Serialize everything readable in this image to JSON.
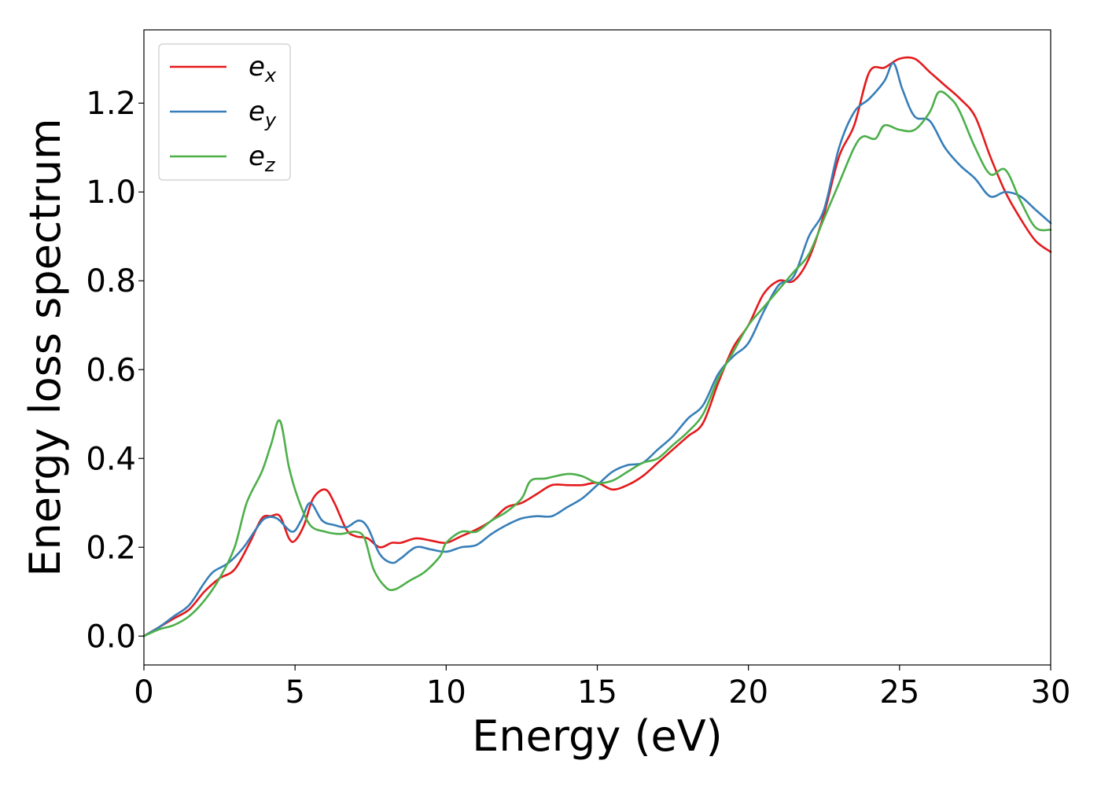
{
  "chart_data": {
    "type": "line",
    "title": "",
    "xlabel": "Energy (eV)",
    "ylabel": "Energy loss spectrum",
    "xlim": [
      0,
      30
    ],
    "ylim": [
      -0.065,
      1.365
    ],
    "xticks": [
      0,
      5,
      10,
      15,
      20,
      25,
      30
    ],
    "xtick_labels": [
      "0",
      "5",
      "10",
      "15",
      "20",
      "25",
      "30"
    ],
    "yticks": [
      0.0,
      0.2,
      0.4,
      0.6,
      0.8,
      1.0,
      1.2
    ],
    "ytick_labels": [
      "0.0",
      "0.2",
      "0.4",
      "0.6",
      "0.8",
      "1.0",
      "1.2"
    ],
    "grid": false,
    "legend_position": "top-left",
    "series": [
      {
        "name": "e_x",
        "legend_base": "e",
        "legend_sub": "x",
        "color": "#e41a1c",
        "points": [
          [
            0,
            0
          ],
          [
            0.5,
            0.02
          ],
          [
            1,
            0.04
          ],
          [
            1.5,
            0.06
          ],
          [
            2,
            0.1
          ],
          [
            2.5,
            0.13
          ],
          [
            3,
            0.15
          ],
          [
            3.5,
            0.21
          ],
          [
            3.9,
            0.265
          ],
          [
            4.2,
            0.27
          ],
          [
            4.5,
            0.27
          ],
          [
            4.8,
            0.22
          ],
          [
            5,
            0.215
          ],
          [
            5.3,
            0.25
          ],
          [
            5.6,
            0.31
          ],
          [
            6,
            0.33
          ],
          [
            6.3,
            0.3
          ],
          [
            6.7,
            0.24
          ],
          [
            7,
            0.225
          ],
          [
            7.4,
            0.22
          ],
          [
            7.8,
            0.2
          ],
          [
            8.2,
            0.21
          ],
          [
            8.5,
            0.21
          ],
          [
            9,
            0.22
          ],
          [
            9.5,
            0.215
          ],
          [
            10,
            0.21
          ],
          [
            10.5,
            0.225
          ],
          [
            11,
            0.24
          ],
          [
            11.5,
            0.26
          ],
          [
            12,
            0.29
          ],
          [
            12.5,
            0.3
          ],
          [
            13,
            0.32
          ],
          [
            13.5,
            0.34
          ],
          [
            14,
            0.34
          ],
          [
            14.5,
            0.34
          ],
          [
            15,
            0.345
          ],
          [
            15.5,
            0.33
          ],
          [
            16,
            0.34
          ],
          [
            16.5,
            0.36
          ],
          [
            17,
            0.39
          ],
          [
            17.5,
            0.42
          ],
          [
            18,
            0.45
          ],
          [
            18.5,
            0.48
          ],
          [
            19,
            0.57
          ],
          [
            19.5,
            0.65
          ],
          [
            20,
            0.7
          ],
          [
            20.5,
            0.77
          ],
          [
            21,
            0.8
          ],
          [
            21.5,
            0.8
          ],
          [
            22,
            0.85
          ],
          [
            22.5,
            0.95
          ],
          [
            23,
            1.08
          ],
          [
            23.5,
            1.15
          ],
          [
            24,
            1.27
          ],
          [
            24.5,
            1.28
          ],
          [
            25,
            1.3
          ],
          [
            25.5,
            1.3
          ],
          [
            26,
            1.27
          ],
          [
            26.5,
            1.24
          ],
          [
            27,
            1.21
          ],
          [
            27.5,
            1.17
          ],
          [
            28,
            1.08
          ],
          [
            28.5,
            1.0
          ],
          [
            29,
            0.94
          ],
          [
            29.5,
            0.89
          ],
          [
            30,
            0.865
          ]
        ]
      },
      {
        "name": "e_y",
        "legend_base": "e",
        "legend_sub": "y",
        "color": "#377eb8",
        "points": [
          [
            0,
            0
          ],
          [
            0.5,
            0.02
          ],
          [
            1,
            0.045
          ],
          [
            1.5,
            0.07
          ],
          [
            2,
            0.12
          ],
          [
            2.3,
            0.145
          ],
          [
            2.8,
            0.165
          ],
          [
            3.3,
            0.2
          ],
          [
            3.7,
            0.24
          ],
          [
            4,
            0.265
          ],
          [
            4.4,
            0.265
          ],
          [
            4.9,
            0.235
          ],
          [
            5.2,
            0.26
          ],
          [
            5.5,
            0.3
          ],
          [
            5.9,
            0.26
          ],
          [
            6.3,
            0.25
          ],
          [
            6.7,
            0.245
          ],
          [
            7.1,
            0.26
          ],
          [
            7.4,
            0.245
          ],
          [
            7.8,
            0.185
          ],
          [
            8.2,
            0.165
          ],
          [
            8.5,
            0.175
          ],
          [
            9,
            0.2
          ],
          [
            9.5,
            0.195
          ],
          [
            10,
            0.19
          ],
          [
            10.5,
            0.2
          ],
          [
            11,
            0.205
          ],
          [
            11.5,
            0.23
          ],
          [
            12,
            0.25
          ],
          [
            12.5,
            0.265
          ],
          [
            13,
            0.27
          ],
          [
            13.5,
            0.27
          ],
          [
            14,
            0.29
          ],
          [
            14.5,
            0.31
          ],
          [
            15,
            0.34
          ],
          [
            15.5,
            0.37
          ],
          [
            16,
            0.385
          ],
          [
            16.5,
            0.39
          ],
          [
            17,
            0.42
          ],
          [
            17.5,
            0.45
          ],
          [
            18,
            0.49
          ],
          [
            18.5,
            0.52
          ],
          [
            19,
            0.59
          ],
          [
            19.5,
            0.63
          ],
          [
            20,
            0.66
          ],
          [
            20.5,
            0.73
          ],
          [
            21,
            0.79
          ],
          [
            21.5,
            0.81
          ],
          [
            22,
            0.9
          ],
          [
            22.5,
            0.96
          ],
          [
            23,
            1.1
          ],
          [
            23.5,
            1.18
          ],
          [
            24,
            1.21
          ],
          [
            24.5,
            1.25
          ],
          [
            24.8,
            1.29
          ],
          [
            25.1,
            1.23
          ],
          [
            25.5,
            1.17
          ],
          [
            26,
            1.16
          ],
          [
            26.5,
            1.1
          ],
          [
            27,
            1.06
          ],
          [
            27.5,
            1.03
          ],
          [
            28,
            0.99
          ],
          [
            28.5,
            1.0
          ],
          [
            29,
            0.99
          ],
          [
            29.5,
            0.96
          ],
          [
            30,
            0.93
          ]
        ]
      },
      {
        "name": "e_z",
        "legend_base": "e",
        "legend_sub": "z",
        "color": "#4daf4a",
        "points": [
          [
            0,
            0
          ],
          [
            0.5,
            0.015
          ],
          [
            1,
            0.025
          ],
          [
            1.5,
            0.045
          ],
          [
            2,
            0.08
          ],
          [
            2.5,
            0.13
          ],
          [
            3,
            0.2
          ],
          [
            3.4,
            0.3
          ],
          [
            3.9,
            0.37
          ],
          [
            4.2,
            0.43
          ],
          [
            4.5,
            0.485
          ],
          [
            4.8,
            0.38
          ],
          [
            5.1,
            0.31
          ],
          [
            5.5,
            0.25
          ],
          [
            6,
            0.235
          ],
          [
            6.5,
            0.23
          ],
          [
            7,
            0.235
          ],
          [
            7.3,
            0.22
          ],
          [
            7.6,
            0.15
          ],
          [
            8,
            0.11
          ],
          [
            8.3,
            0.105
          ],
          [
            8.8,
            0.125
          ],
          [
            9.3,
            0.145
          ],
          [
            9.8,
            0.18
          ],
          [
            10,
            0.21
          ],
          [
            10.5,
            0.235
          ],
          [
            11,
            0.235
          ],
          [
            11.5,
            0.26
          ],
          [
            12,
            0.28
          ],
          [
            12.5,
            0.31
          ],
          [
            12.8,
            0.35
          ],
          [
            13.3,
            0.355
          ],
          [
            14,
            0.365
          ],
          [
            14.5,
            0.36
          ],
          [
            15,
            0.345
          ],
          [
            15.5,
            0.35
          ],
          [
            16,
            0.37
          ],
          [
            16.5,
            0.39
          ],
          [
            17,
            0.4
          ],
          [
            17.5,
            0.43
          ],
          [
            18,
            0.46
          ],
          [
            18.5,
            0.5
          ],
          [
            19,
            0.58
          ],
          [
            19.5,
            0.64
          ],
          [
            20,
            0.7
          ],
          [
            20.5,
            0.74
          ],
          [
            21,
            0.78
          ],
          [
            21.5,
            0.82
          ],
          [
            22,
            0.86
          ],
          [
            22.5,
            0.94
          ],
          [
            23,
            1.02
          ],
          [
            23.5,
            1.1
          ],
          [
            23.8,
            1.125
          ],
          [
            24.2,
            1.12
          ],
          [
            24.5,
            1.15
          ],
          [
            25,
            1.14
          ],
          [
            25.5,
            1.14
          ],
          [
            26,
            1.18
          ],
          [
            26.3,
            1.225
          ],
          [
            26.7,
            1.21
          ],
          [
            27,
            1.18
          ],
          [
            27.5,
            1.1
          ],
          [
            28,
            1.04
          ],
          [
            28.5,
            1.05
          ],
          [
            29,
            0.98
          ],
          [
            29.5,
            0.92
          ],
          [
            30,
            0.915
          ]
        ]
      }
    ]
  }
}
